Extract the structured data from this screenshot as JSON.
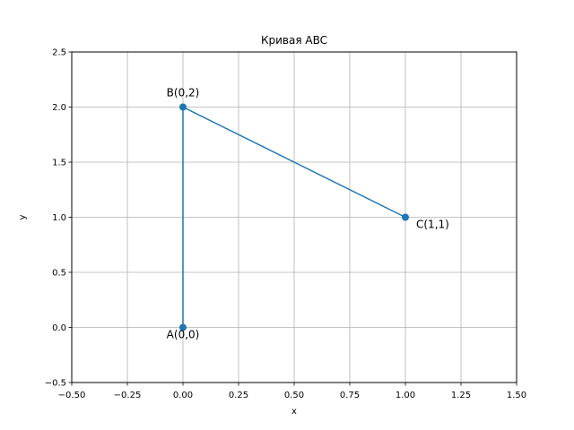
{
  "chart_data": {
    "type": "line",
    "title": "Кривая ABC",
    "xlabel": "x",
    "ylabel": "y",
    "xlim": [
      -0.5,
      1.5
    ],
    "ylim": [
      -0.5,
      2.5
    ],
    "xticks": [
      -0.5,
      -0.25,
      0.0,
      0.25,
      0.5,
      0.75,
      1.0,
      1.25,
      1.5
    ],
    "yticks": [
      -0.5,
      0.0,
      0.5,
      1.0,
      1.5,
      2.0,
      2.5
    ],
    "xtick_labels": [
      "−0.50",
      "−0.25",
      "0.00",
      "0.25",
      "0.50",
      "0.75",
      "1.00",
      "1.25",
      "1.50"
    ],
    "ytick_labels": [
      "−0.5",
      "0.0",
      "0.5",
      "1.0",
      "1.5",
      "2.0",
      "2.5"
    ],
    "grid": true,
    "line_color": "#1f77b4",
    "series": [
      {
        "points": [
          {
            "x": 0,
            "y": 0,
            "label": "A(0,0)"
          },
          {
            "x": 0,
            "y": 2,
            "label": "B(0,2)"
          },
          {
            "x": 1,
            "y": 1,
            "label": "C(1,1)"
          }
        ]
      }
    ]
  }
}
